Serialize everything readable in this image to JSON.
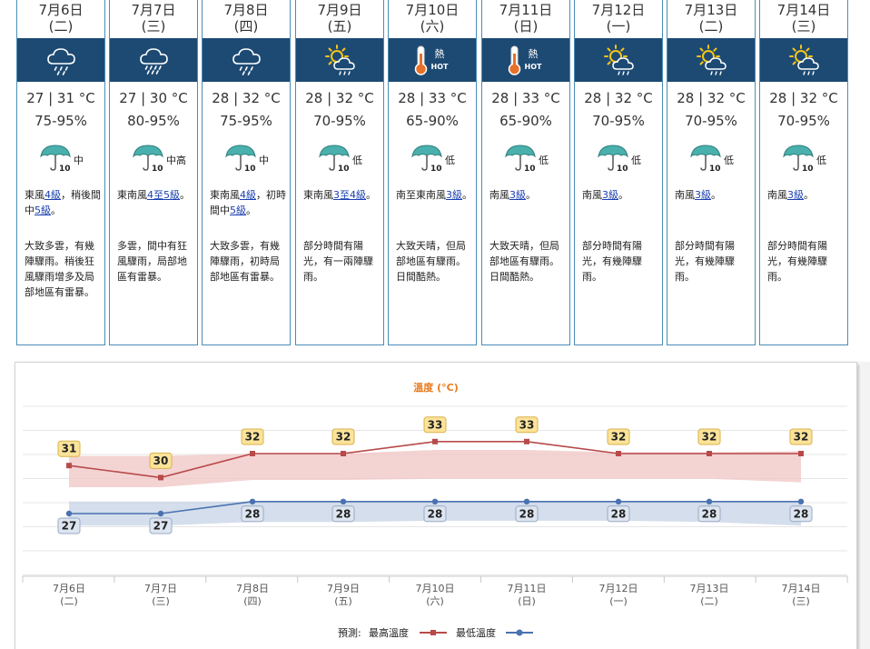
{
  "days": [
    {
      "date": "7月6日",
      "weekday": "(二)",
      "icon": "rain-icon",
      "temp": "27 | 31 °C",
      "humidity": "75-95%",
      "psr": "中",
      "wind": [
        {
          "t": "東風"
        },
        {
          "t": "4級",
          "link": true
        },
        {
          "t": "，稍後間中"
        },
        {
          "t": "5級",
          "link": true
        },
        {
          "t": "。"
        }
      ],
      "desc": "大致多雲，有幾陣驟雨。稍後狂風驟雨增多及局部地區有雷暴。"
    },
    {
      "date": "7月7日",
      "weekday": "(三)",
      "icon": "heavy-rain-icon",
      "temp": "27 | 30 °C",
      "humidity": "80-95%",
      "psr": "中高",
      "wind": [
        {
          "t": "東南風"
        },
        {
          "t": "4至5級",
          "link": true
        },
        {
          "t": "。"
        }
      ],
      "desc": "多雲，間中有狂風驟雨，局部地區有雷暴。"
    },
    {
      "date": "7月8日",
      "weekday": "(四)",
      "icon": "rain-icon",
      "temp": "28 | 32 °C",
      "humidity": "75-95%",
      "psr": "中",
      "wind": [
        {
          "t": "東南風"
        },
        {
          "t": "4級",
          "link": true
        },
        {
          "t": "，初時間中"
        },
        {
          "t": "5級",
          "link": true
        },
        {
          "t": "。"
        }
      ],
      "desc": "大致多雲，有幾陣驟雨，初時局部地區有雷暴。"
    },
    {
      "date": "7月9日",
      "weekday": "(五)",
      "icon": "sun-cloud-shower-icon",
      "temp": "28 | 32 °C",
      "humidity": "70-95%",
      "psr": "低",
      "wind": [
        {
          "t": "東南風"
        },
        {
          "t": "3至4級",
          "link": true
        },
        {
          "t": "。"
        }
      ],
      "desc": "部分時間有陽光，有一兩陣驟雨。"
    },
    {
      "date": "7月10日",
      "weekday": "(六)",
      "icon": "very-hot-icon",
      "temp": "28 | 33 °C",
      "humidity": "65-90%",
      "psr": "低",
      "wind": [
        {
          "t": "南至東南風"
        },
        {
          "t": "3級",
          "link": true
        },
        {
          "t": "。"
        }
      ],
      "desc": "大致天晴，但局部地區有驟雨。日間酷熱。"
    },
    {
      "date": "7月11日",
      "weekday": "(日)",
      "icon": "very-hot-icon",
      "temp": "28 | 33 °C",
      "humidity": "65-90%",
      "psr": "低",
      "wind": [
        {
          "t": "南風"
        },
        {
          "t": "3級",
          "link": true
        },
        {
          "t": "。"
        }
      ],
      "desc": "大致天晴，但局部地區有驟雨。日間酷熱。"
    },
    {
      "date": "7月12日",
      "weekday": "(一)",
      "icon": "sun-cloud-shower-icon",
      "temp": "28 | 32 °C",
      "humidity": "70-95%",
      "psr": "低",
      "wind": [
        {
          "t": "南風"
        },
        {
          "t": "3級",
          "link": true
        },
        {
          "t": "。"
        }
      ],
      "desc": "部分時間有陽光，有幾陣驟雨。"
    },
    {
      "date": "7月13日",
      "weekday": "(二)",
      "icon": "sun-cloud-shower-icon",
      "temp": "28 | 32 °C",
      "humidity": "70-95%",
      "psr": "低",
      "wind": [
        {
          "t": "南風"
        },
        {
          "t": "3級",
          "link": true
        },
        {
          "t": "。"
        }
      ],
      "desc": "部分時間有陽光，有幾陣驟雨。"
    },
    {
      "date": "7月14日",
      "weekday": "(三)",
      "icon": "sun-cloud-shower-icon",
      "temp": "28 | 32 °C",
      "humidity": "70-95%",
      "psr": "低",
      "wind": [
        {
          "t": "南風"
        },
        {
          "t": "3級",
          "link": true
        },
        {
          "t": "。"
        }
      ],
      "desc": "部分時間有陽光，有幾陣驟雨。"
    }
  ],
  "hot_label": "熱",
  "hot_label_en": "HOT",
  "colors": {
    "header_bg": "#1d4a73",
    "max_line": "#b84a4a",
    "max_band": "#f0c4c4",
    "min_line": "#4a72b0",
    "min_band": "#c5d3e6",
    "title": "#e87b1c",
    "max_label_bg": "#fbe39a",
    "min_label_bg": "#dde5f0"
  },
  "chart_data": {
    "type": "line",
    "title": "溫度 (°C)",
    "categories": [
      [
        "7月6日",
        "(二)"
      ],
      [
        "7月7日",
        "(三)"
      ],
      [
        "7月8日",
        "(四)"
      ],
      [
        "7月9日",
        "(五)"
      ],
      [
        "7月10日",
        "(六)"
      ],
      [
        "7月11日",
        "(日)"
      ],
      [
        "7月12日",
        "(一)"
      ],
      [
        "7月13日",
        "(二)"
      ],
      [
        "7月14日",
        "(三)"
      ]
    ],
    "series": [
      {
        "name": "最高溫度",
        "values": [
          31,
          30,
          32,
          32,
          33,
          33,
          32,
          32,
          32
        ],
        "band": [
          [
            29.2,
            31.8
          ],
          [
            29.2,
            31.8
          ],
          [
            29.8,
            32.0
          ],
          [
            29.8,
            32.0
          ],
          [
            29.9,
            32.3
          ],
          [
            29.9,
            32.3
          ],
          [
            29.9,
            32.1
          ],
          [
            29.9,
            32.1
          ],
          [
            29.6,
            32.2
          ]
        ]
      },
      {
        "name": "最低溫度",
        "values": [
          27,
          27,
          28,
          28,
          28,
          28,
          28,
          28,
          28
        ],
        "band": [
          [
            26.0,
            28.0
          ],
          [
            26.0,
            28.0
          ],
          [
            26.3,
            28.0
          ],
          [
            26.3,
            28.0
          ],
          [
            26.4,
            28.0
          ],
          [
            26.4,
            28.0
          ],
          [
            26.4,
            28.0
          ],
          [
            26.3,
            28.0
          ],
          [
            26.0,
            28.0
          ]
        ]
      }
    ],
    "legend_prefix": "預測:",
    "grid": true,
    "legend": "bottom-center"
  }
}
